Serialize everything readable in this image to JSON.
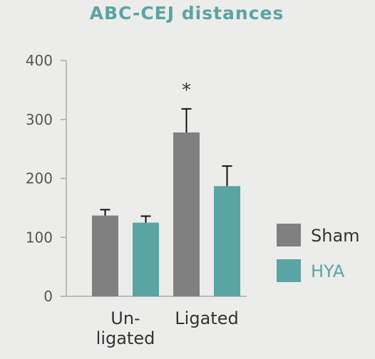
{
  "chart_data": {
    "type": "bar",
    "title": "ABC-CEJ distances",
    "categories": [
      "Un-\nligated",
      "Ligated"
    ],
    "series": [
      {
        "name": "Sham",
        "values": [
          137,
          278
        ],
        "errors": [
          10,
          40
        ],
        "color": "#808080"
      },
      {
        "name": "HYA",
        "values": [
          125,
          187
        ],
        "errors": [
          11,
          34
        ],
        "color": "#5ba4a4"
      }
    ],
    "yticks": [
      0,
      100,
      200,
      300,
      400
    ],
    "ylim": [
      0,
      400
    ],
    "annotations": [
      {
        "text": "*",
        "category": 1,
        "series": 0
      }
    ],
    "legend_position": "right",
    "grid": false
  }
}
